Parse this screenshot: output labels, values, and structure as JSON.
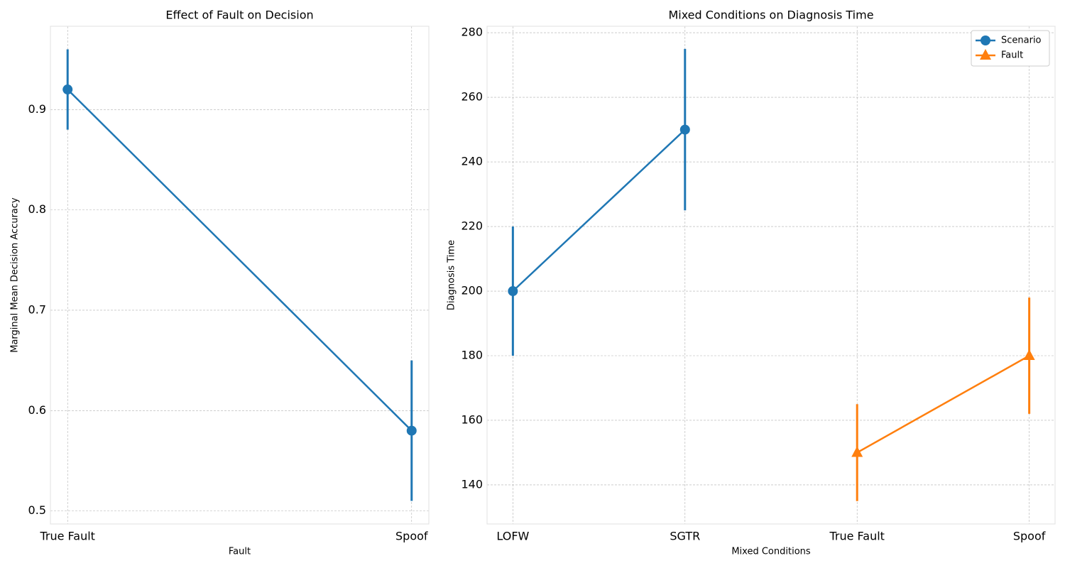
{
  "chart_data": [
    {
      "type": "line",
      "title": "Effect of Fault on Decision",
      "x_label": "Fault",
      "y_label": "Marginal Mean Decision Accuracy",
      "categories": [
        "True Fault",
        "Spoof"
      ],
      "values": [
        0.92,
        0.58
      ],
      "errors": [
        0.04,
        0.07
      ],
      "color": "#1f77b4",
      "marker": "o",
      "ylim": [
        0.487,
        0.983
      ],
      "yticks": [
        0.5,
        0.6,
        0.7,
        0.8,
        0.9
      ],
      "grid": true
    },
    {
      "type": "line",
      "title": "Mixed Conditions on Diagnosis Time",
      "x_label": "Mixed Conditions",
      "y_label": "Diagnosis Time",
      "categories": [
        "LOFW",
        "SGTR",
        "True Fault",
        "Spoof"
      ],
      "series": [
        {
          "name": "Scenario",
          "color": "#1f77b4",
          "marker": "o",
          "values": [
            200,
            250,
            null,
            null
          ],
          "errors": [
            20,
            25,
            null,
            null
          ]
        },
        {
          "name": "Fault",
          "color": "#ff7f0e",
          "marker": "^",
          "values": [
            null,
            null,
            150,
            180
          ],
          "errors": [
            null,
            null,
            15,
            18
          ]
        }
      ],
      "ylim": [
        127.9,
        282
      ],
      "yticks": [
        140,
        160,
        180,
        200,
        220,
        240,
        260,
        280
      ],
      "grid": true,
      "legend": "upper right"
    }
  ]
}
